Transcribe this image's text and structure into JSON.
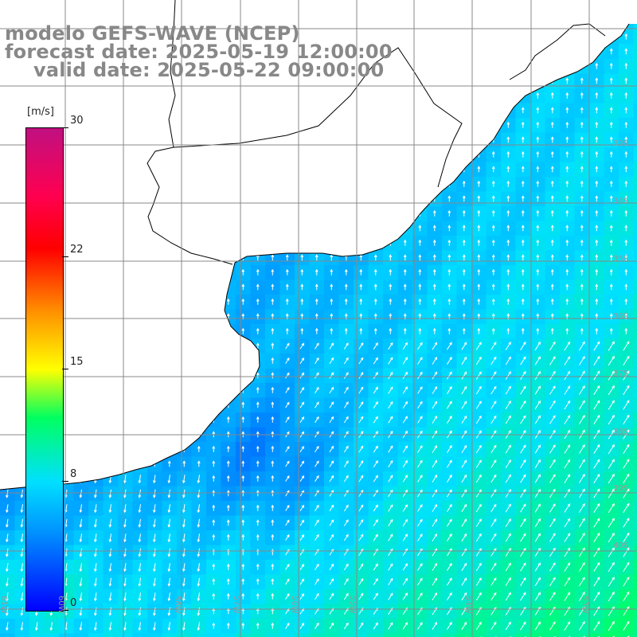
{
  "title": {
    "model": "modelo GEFS-WAVE (NCEP)",
    "forecast": "forecast date: 2025-05-19 12:00:00",
    "valid": "valid date: 2025-05-22 09:00:00"
  },
  "colorbar": {
    "unit": "[m/s]",
    "min": 0,
    "max": 30,
    "ticks": [
      "30",
      "22",
      "15",
      "8",
      "0"
    ],
    "tick_values": [
      30,
      22,
      15,
      8,
      0
    ],
    "colors": [
      "#0000ff",
      "#0090ff",
      "#00e0ff",
      "#00ff60",
      "#ffff00",
      "#ff9000",
      "#ff0000",
      "#c01080"
    ]
  },
  "map": {
    "lon_range": [
      -64,
      -52
    ],
    "lat_range": [
      -41,
      -31
    ],
    "lat_labels": [
      "33S",
      "34S",
      "35S",
      "36S",
      "37S",
      "38S",
      "39S",
      "40S"
    ],
    "lon_labels": [
      "61W",
      "60W",
      "58W",
      "57W",
      "56W",
      "55W",
      "54W",
      "53W"
    ],
    "land_color": "#ffffff",
    "grid_color": "#888888",
    "wind_field": "wind speed and direction over ocean"
  }
}
